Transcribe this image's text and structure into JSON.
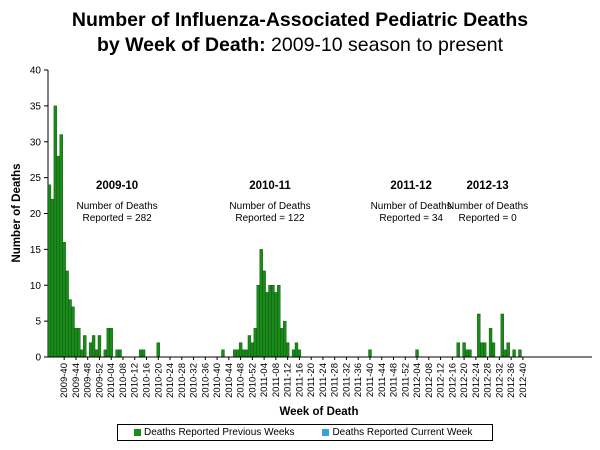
{
  "chart_data": {
    "type": "bar",
    "title_line1": "Number of Influenza-Associated Pediatric Deaths",
    "title_line2_bold": "by Week of Death:",
    "title_line2_rest": " 2009-10 season to present",
    "xlabel": "Week of Death",
    "ylabel": "Number of Deaths",
    "ylim": [
      0,
      40
    ],
    "yticks": [
      0,
      5,
      10,
      15,
      20,
      25,
      30,
      35,
      40
    ],
    "grid": false,
    "legend_position": "bottom",
    "start_week": "2009-35",
    "x_tick_labels": [
      "2009-40",
      "2009-44",
      "2009-48",
      "2009-52",
      "2010-04",
      "2010-08",
      "2010-12",
      "2010-16",
      "2010-20",
      "2010-24",
      "2010-28",
      "2010-32",
      "2010-36",
      "2010-40",
      "2010-44",
      "2010-48",
      "2010-52",
      "2011-04",
      "2011-08",
      "2011-12",
      "2011-16",
      "2011-20",
      "2011-24",
      "2011-28",
      "2011-32",
      "2011-36",
      "2011-40",
      "2011-44",
      "2011-48",
      "2011-52",
      "2012-04",
      "2012-08",
      "2012-12",
      "2012-16",
      "2012-20",
      "2012-24",
      "2012-28",
      "2012-32",
      "2012-36",
      "2012-40"
    ],
    "series": [
      {
        "name": "Deaths Reported Previous Weeks",
        "color": "#1a8a1a",
        "values": [
          24,
          22,
          35,
          28,
          31,
          16,
          12,
          8,
          7,
          4,
          4,
          1,
          3,
          0,
          2,
          3,
          1,
          3,
          0,
          1,
          4,
          4,
          0,
          1,
          1,
          0,
          0,
          0,
          0,
          0,
          0,
          1,
          1,
          0,
          0,
          0,
          0,
          2,
          0,
          0,
          0,
          0,
          0,
          0,
          0,
          0,
          0,
          0,
          0,
          0,
          0,
          0,
          0,
          0,
          0,
          0,
          0,
          0,
          0,
          1,
          0,
          0,
          0,
          1,
          1,
          2,
          1,
          1,
          3,
          2,
          4,
          10,
          15,
          12,
          9,
          10,
          10,
          9,
          10,
          4,
          5,
          2,
          0,
          1,
          2,
          1,
          0,
          0,
          0,
          0,
          0,
          0,
          0,
          0,
          0,
          0,
          0,
          0,
          0,
          0,
          0,
          0,
          0,
          0,
          0,
          0,
          0,
          0,
          0,
          1,
          0,
          0,
          0,
          0,
          0,
          0,
          0,
          0,
          0,
          0,
          0,
          0,
          0,
          0,
          0,
          1,
          0,
          0,
          0,
          0,
          0,
          0,
          0,
          0,
          0,
          0,
          0,
          0,
          0,
          2,
          0,
          2,
          1,
          1,
          0,
          0,
          6,
          2,
          2,
          0,
          4,
          2,
          0,
          0,
          6,
          1,
          2,
          0,
          1,
          0,
          1,
          0,
          0,
          0,
          0,
          0,
          0,
          0,
          0,
          0,
          0,
          0,
          0,
          0,
          0,
          0,
          0,
          0,
          0,
          0,
          0,
          0,
          0,
          0,
          0
        ]
      },
      {
        "name": "Deaths Reported Current Week",
        "color": "#3aa0d8",
        "values": []
      }
    ],
    "annotations": [
      {
        "season": "2009-10",
        "line1": "Number of Deaths",
        "line2": "Reported = 282",
        "x_week": "2009-58"
      },
      {
        "season": "2010-11",
        "line1": "Number of Deaths",
        "line2": "Reported = 122",
        "x_week": "2011-06"
      },
      {
        "season": "2011-12",
        "line1": "Number of Deaths",
        "line2": "Reported = 34",
        "x_week": "2012-02"
      },
      {
        "season": "2012-13",
        "line1": "Number of Deaths",
        "line2": "Reported = 0",
        "x_week": "2012-28"
      }
    ]
  }
}
